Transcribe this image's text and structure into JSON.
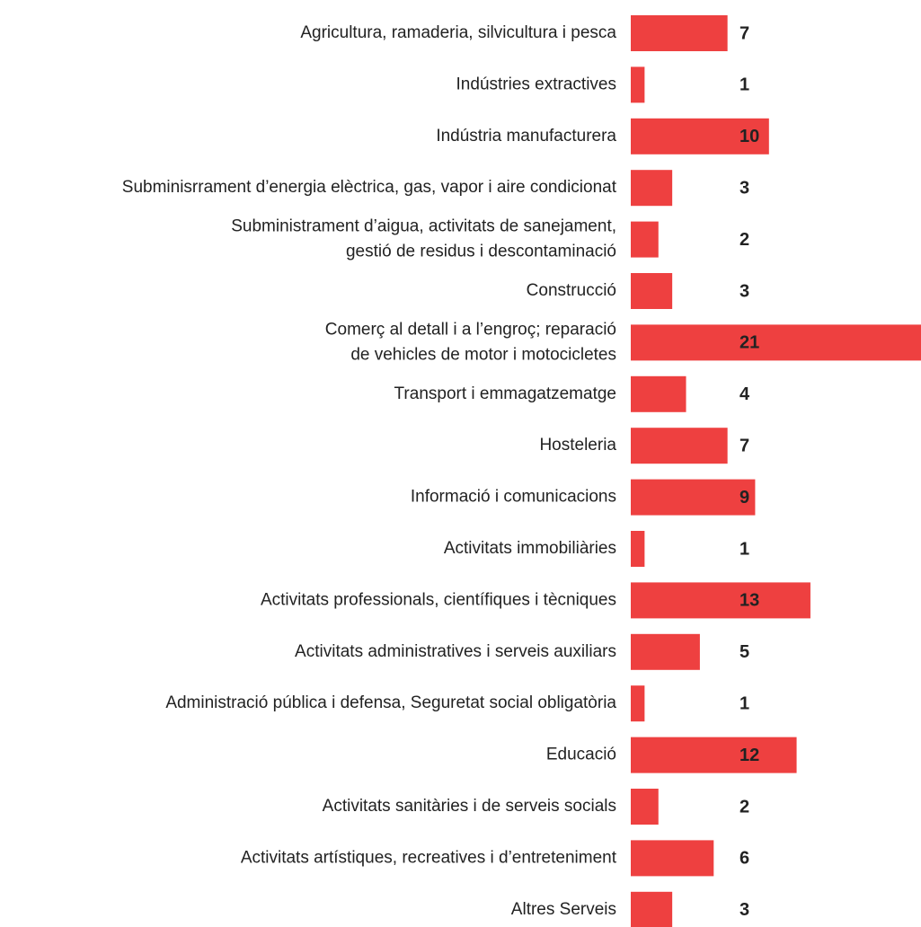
{
  "chart_data": {
    "type": "barh",
    "color": "#ee4040",
    "categories": [
      [
        "Agricultura, ramaderia, silvicultura i pesca"
      ],
      [
        "Indústries extractives"
      ],
      [
        "Indústria manufacturera"
      ],
      [
        "Subminisrrament d’energia elèctrica, gas, vapor i aire condicionat"
      ],
      [
        "Subministrament d’aigua, activitats de sanejament,",
        "gestió de residus i descontaminació"
      ],
      [
        "Construcció"
      ],
      [
        "Comerç al detall i a l’engroç; reparació",
        "de vehicles de motor i motocicletes"
      ],
      [
        "Transport i emmagatzematge"
      ],
      [
        "Hosteleria"
      ],
      [
        "Informació i comunicacions"
      ],
      [
        "Activitats immobiliàries"
      ],
      [
        "Activitats professionals, científiques i tècniques"
      ],
      [
        "Activitats administratives i serveis auxiliars"
      ],
      [
        "Administració pública i defensa, Seguretat social obligatòria"
      ],
      [
        "Educació"
      ],
      [
        "Activitats sanitàries i de serveis socials"
      ],
      [
        "Activitats artístiques, recreatives i d’entreteniment"
      ],
      [
        "Altres Serveis"
      ]
    ],
    "values": [
      7,
      1,
      10,
      3,
      2,
      3,
      21,
      4,
      7,
      9,
      1,
      13,
      5,
      1,
      12,
      2,
      6,
      3
    ]
  }
}
